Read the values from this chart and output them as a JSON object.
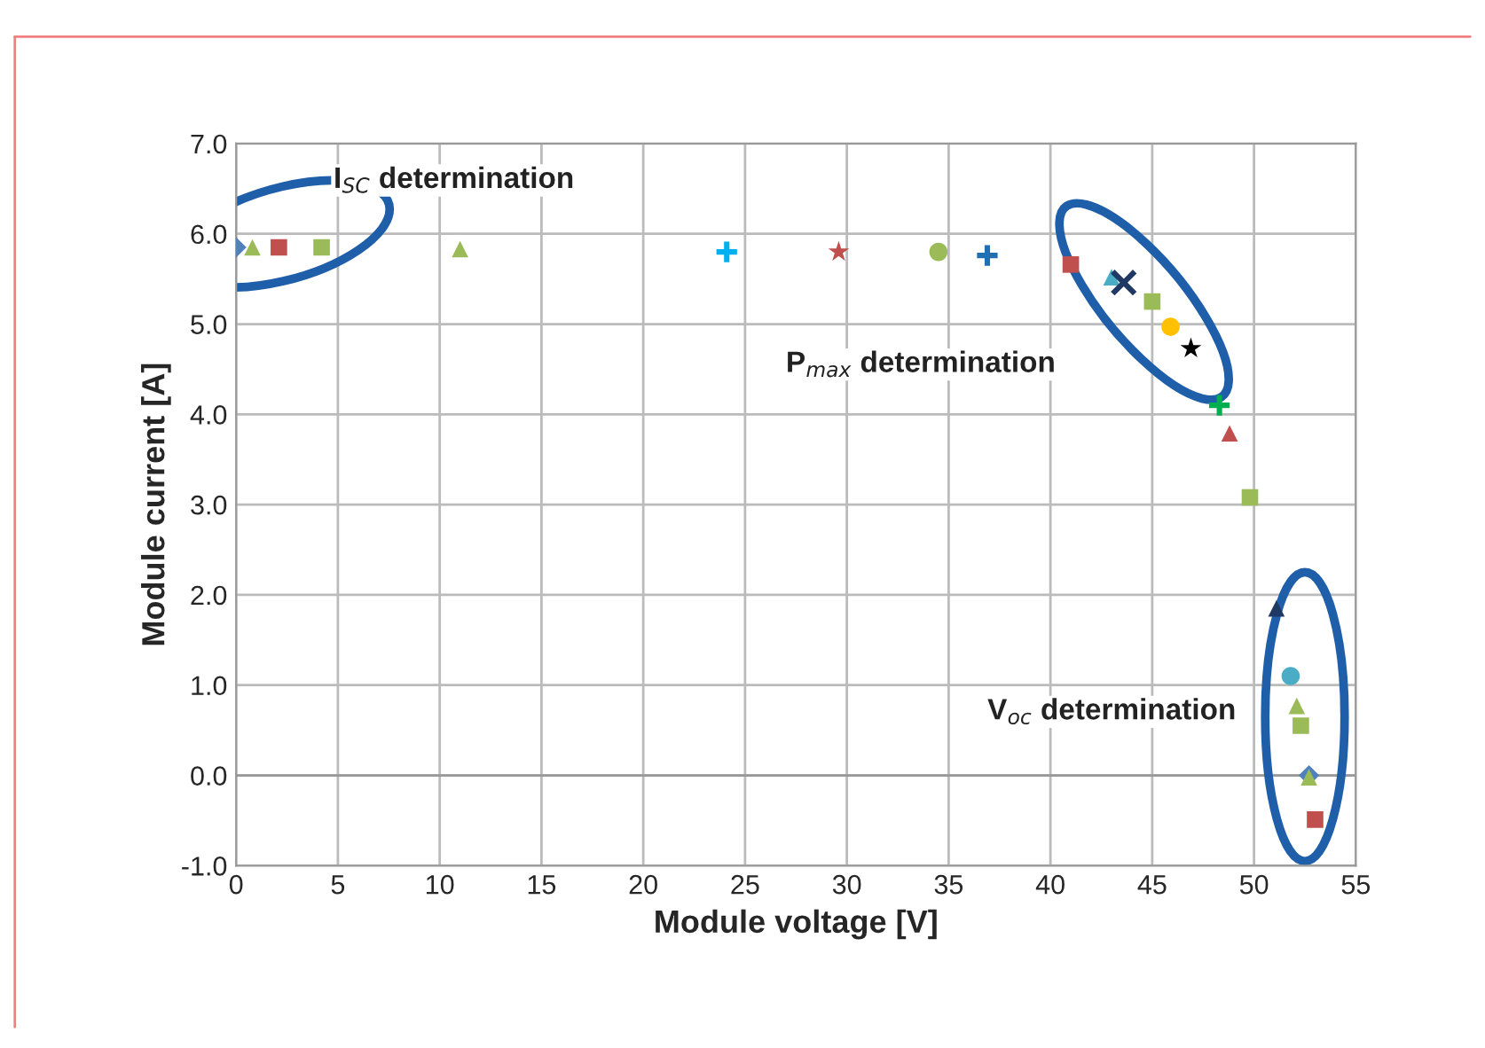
{
  "chart_data": {
    "type": "scatter",
    "xlabel": "Module voltage [V]",
    "ylabel": "Module current [A]",
    "xlim": [
      0,
      55
    ],
    "xticks": [
      0,
      5,
      10,
      15,
      20,
      25,
      30,
      35,
      40,
      45,
      50,
      55
    ],
    "ylim": [
      -1,
      7
    ],
    "yticks": [
      {
        "value": -1,
        "label": "-1.0"
      },
      {
        "value": 0,
        "label": "0.0"
      },
      {
        "value": 1,
        "label": "1.0"
      },
      {
        "value": 2,
        "label": "2.0"
      },
      {
        "value": 3,
        "label": "3.0"
      },
      {
        "value": 4,
        "label": "4.0"
      },
      {
        "value": 5,
        "label": "5.0"
      },
      {
        "value": 6,
        "label": "6.0"
      },
      {
        "value": 7,
        "label": "7.0"
      }
    ],
    "grid": true,
    "legend": false,
    "annotations": [
      "I$_{SC}$ determination",
      "P$_{max}$ determination",
      "V$_{oc}$ determination"
    ],
    "series": [
      {
        "marker": "diamond",
        "color": "#4f81bd",
        "x": [
          0,
          52.7
        ],
        "values": [
          5.85,
          0.0
        ]
      },
      {
        "marker": "triangle",
        "color": "#9bbb59",
        "x": [
          0.8,
          11.0,
          52.1,
          52.7
        ],
        "values": [
          5.85,
          5.83,
          0.77,
          -0.02
        ]
      },
      {
        "marker": "square",
        "color": "#c0504d",
        "x": [
          2.1,
          41.0,
          53.0
        ],
        "values": [
          5.85,
          5.66,
          -0.49
        ]
      },
      {
        "marker": "square",
        "color": "#9bbb59",
        "x": [
          4.2,
          45.0,
          49.8,
          52.3
        ],
        "values": [
          5.85,
          5.25,
          3.08,
          0.55
        ]
      },
      {
        "marker": "cross",
        "color": "#00b0f0",
        "x": [
          24.1
        ],
        "values": [
          5.8
        ]
      },
      {
        "marker": "star",
        "color": "#c0504d",
        "x": [
          29.6
        ],
        "values": [
          5.8
        ]
      },
      {
        "marker": "circle",
        "color": "#9bbb59",
        "x": [
          34.5
        ],
        "values": [
          5.8
        ]
      },
      {
        "marker": "cross",
        "color": "#1f6fb5",
        "x": [
          36.9
        ],
        "values": [
          5.76
        ]
      },
      {
        "marker": "triangle",
        "color": "#4bacc6",
        "x": [
          43.0
        ],
        "values": [
          5.52
        ]
      },
      {
        "marker": "x",
        "color": "#1f3864",
        "x": [
          43.6
        ],
        "values": [
          5.46
        ]
      },
      {
        "marker": "circle",
        "color": "#ffc000",
        "x": [
          45.9
        ],
        "values": [
          4.97
        ]
      },
      {
        "marker": "star",
        "color": "#000000",
        "x": [
          46.9
        ],
        "values": [
          4.73
        ]
      },
      {
        "marker": "cross",
        "color": "#00b050",
        "x": [
          48.3
        ],
        "values": [
          4.1
        ]
      },
      {
        "marker": "triangle",
        "color": "#c0504d",
        "x": [
          48.8
        ],
        "values": [
          3.79
        ]
      },
      {
        "marker": "triangle",
        "color": "#1f3864",
        "x": [
          51.1
        ],
        "values": [
          1.85
        ]
      },
      {
        "marker": "circle",
        "color": "#4bacc6",
        "x": [
          51.8
        ],
        "values": [
          1.1
        ]
      }
    ]
  }
}
